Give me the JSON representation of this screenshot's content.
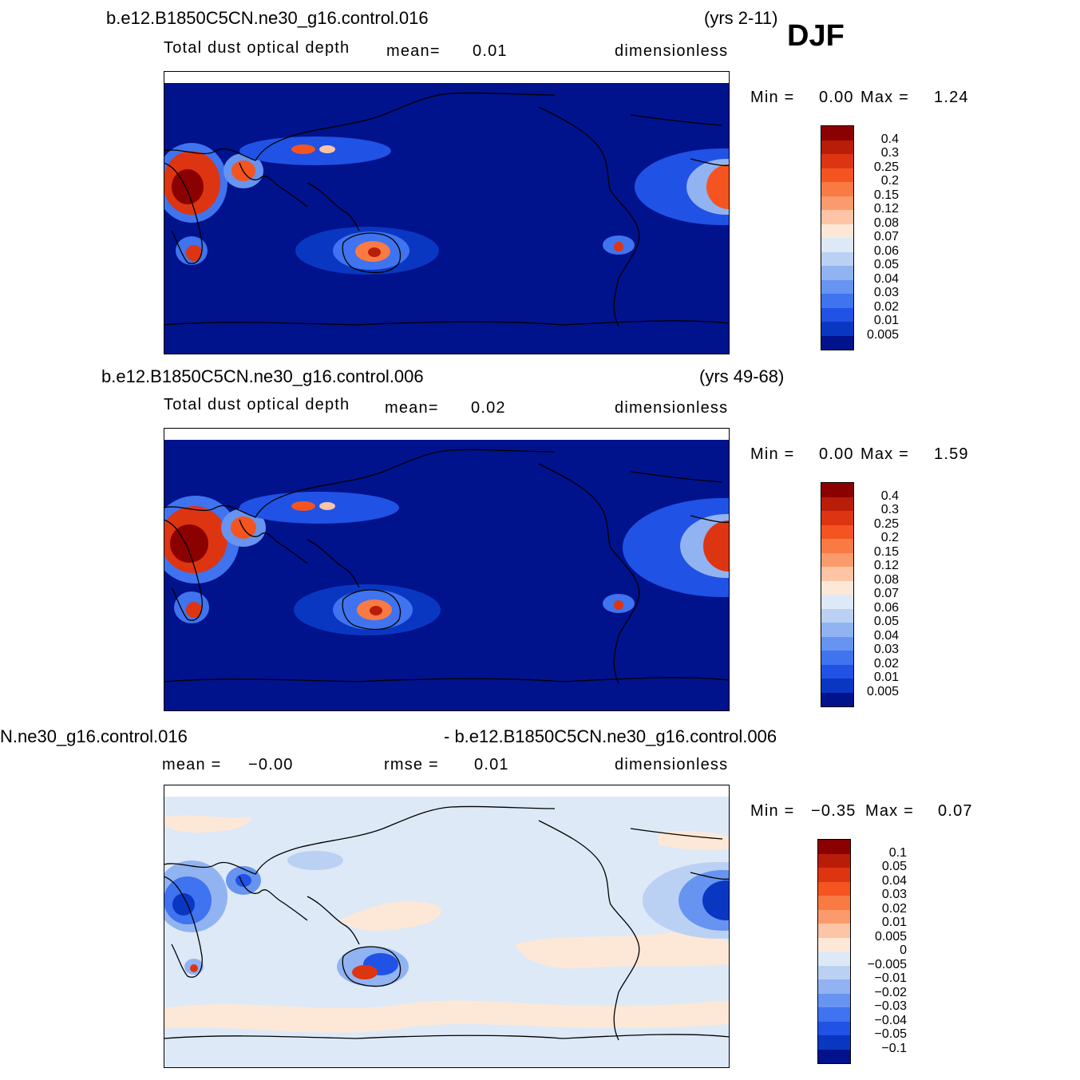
{
  "season": "DJF",
  "panels": [
    {
      "case_label": "b.e12.B1850C5CN.ne30_g16.control.016",
      "years": "(yrs 2-11)",
      "variable": "Total dust optical depth",
      "mean_label": "mean=",
      "mean_value": "0.01",
      "units": "dimensionless",
      "min_label": "Min =",
      "min_value": "0.00",
      "max_label": "Max =",
      "max_value": "1.24",
      "levels": [
        "0.4",
        "0.3",
        "0.25",
        "0.2",
        "0.15",
        "0.12",
        "0.08",
        "0.07",
        "0.06",
        "0.05",
        "0.04",
        "0.03",
        "0.02",
        "0.01",
        "0.005"
      ],
      "colors": [
        "#8b0000",
        "#b81d0a",
        "#dd3511",
        "#f45420",
        "#fa7a43",
        "#fb9a6c",
        "#fdc4a5",
        "#fde8d8",
        "#dde9f6",
        "#bad1f3",
        "#91b3f1",
        "#6694f0",
        "#3f73ef",
        "#2052e6",
        "#0a37c2",
        "#00128c"
      ]
    },
    {
      "case_label": "b.e12.B1850C5CN.ne30_g16.control.006",
      "years": "(yrs 49-68)",
      "variable": "Total dust optical depth",
      "mean_label": "mean=",
      "mean_value": "0.02",
      "units": "dimensionless",
      "min_label": "Min =",
      "min_value": "0.00",
      "max_label": "Max =",
      "max_value": "1.59",
      "levels": [
        "0.4",
        "0.3",
        "0.25",
        "0.2",
        "0.15",
        "0.12",
        "0.08",
        "0.07",
        "0.06",
        "0.05",
        "0.04",
        "0.03",
        "0.02",
        "0.01",
        "0.005"
      ],
      "colors": [
        "#8b0000",
        "#b81d0a",
        "#dd3511",
        "#f45420",
        "#fa7a43",
        "#fb9a6c",
        "#fdc4a5",
        "#fde8d8",
        "#dde9f6",
        "#bad1f3",
        "#91b3f1",
        "#6694f0",
        "#3f73ef",
        "#2052e6",
        "#0a37c2",
        "#00128c"
      ]
    },
    {
      "case_label_left": "N.ne30_g16.control.016",
      "case_label_right": "- b.e12.B1850C5CN.ne30_g16.control.006",
      "mean_label": "mean =",
      "mean_value": "−0.00",
      "rmse_label": "rmse =",
      "rmse_value": "0.01",
      "units": "dimensionless",
      "min_label": "Min =",
      "min_value": "−0.35",
      "max_label": "Max =",
      "max_value": "0.07",
      "levels": [
        "0.1",
        "0.05",
        "0.04",
        "0.03",
        "0.02",
        "0.01",
        "0.005",
        "0",
        "−0.005",
        "−0.01",
        "−0.02",
        "−0.03",
        "−0.04",
        "−0.05",
        "−0.1"
      ],
      "colors": [
        "#8b0000",
        "#b81d0a",
        "#dd3511",
        "#f45420",
        "#fa7a43",
        "#fb9a6c",
        "#fdc4a5",
        "#fde8d8",
        "#dde9f6",
        "#bad1f3",
        "#91b3f1",
        "#6694f0",
        "#3f73ef",
        "#2052e6",
        "#0a37c2",
        "#00128c"
      ]
    }
  ]
}
